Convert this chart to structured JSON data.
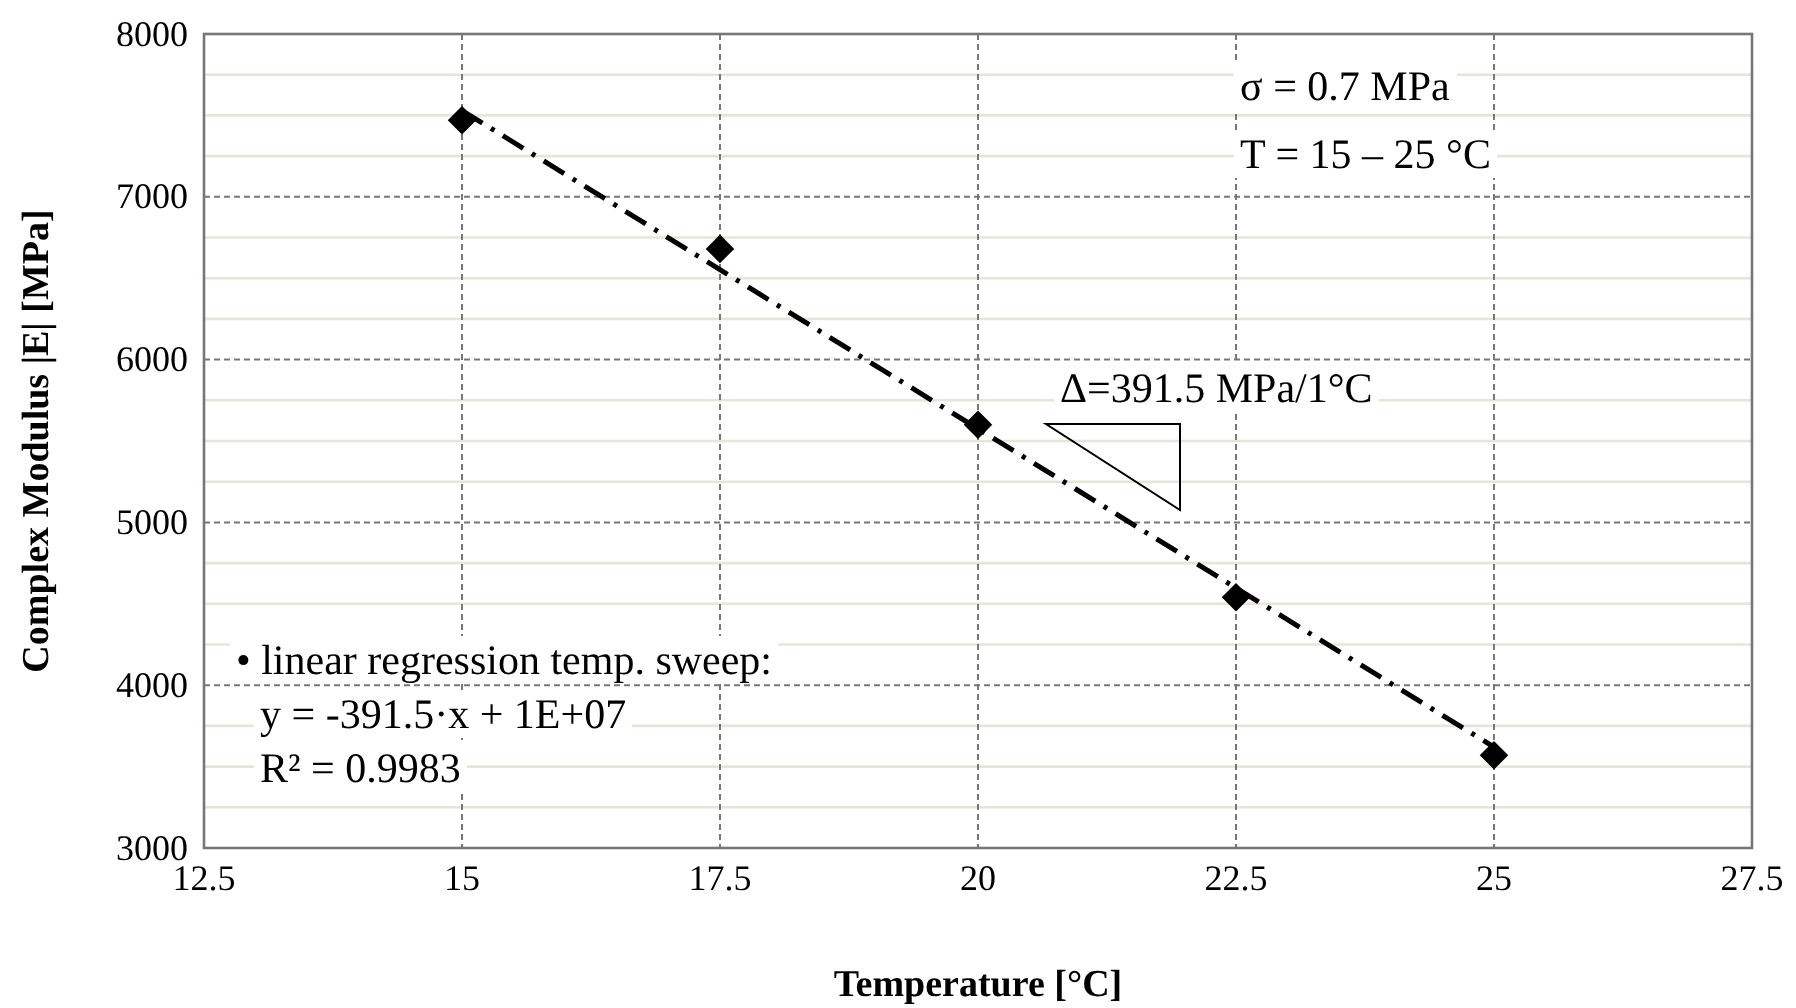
{
  "chart_data": {
    "type": "scatter",
    "xlabel": "Temperature [°C]",
    "ylabel": "Complex Modulus |E| [MPa]",
    "xlim": [
      12.5,
      27.5
    ],
    "xticks": [
      {
        "value": 12.5,
        "label": "12.5"
      },
      15,
      {
        "value": 17.5,
        "label": "17.5"
      },
      20,
      {
        "value": 22.5,
        "label": "22.5"
      },
      25,
      {
        "value": 27.5,
        "label": "27.5"
      }
    ],
    "ylim": [
      3000,
      8000
    ],
    "yticks": [
      3000,
      {
        "value": 3250,
        "label": null
      },
      {
        "value": 3500,
        "label": null
      },
      {
        "value": 3750,
        "label": null
      },
      4000,
      {
        "value": 4250,
        "label": null
      },
      {
        "value": 4500,
        "label": null
      },
      {
        "value": 4750,
        "label": null
      },
      5000,
      {
        "value": 5250,
        "label": null
      },
      {
        "value": 5500,
        "label": null
      },
      {
        "value": 5750,
        "label": null
      },
      6000,
      {
        "value": 6250,
        "label": null
      },
      {
        "value": 6500,
        "label": null
      },
      {
        "value": 6750,
        "label": null
      },
      7000,
      {
        "value": 7250,
        "label": null
      },
      {
        "value": 7500,
        "label": null
      },
      {
        "value": 7750,
        "label": null
      },
      8000
    ],
    "grid": true,
    "series": [
      {
        "type": "line",
        "color": "#000000",
        "x": [
          15,
          25
        ],
        "values": [
          7530,
          3620
        ],
        "line_style": "dashed",
        "marker": "none"
      },
      {
        "color": "#000000",
        "x": [
          15,
          17.5,
          20,
          22.5,
          25
        ],
        "values": [
          7470,
          6680,
          5600,
          4540,
          3570
        ],
        "marker": "diamond"
      }
    ],
    "annotations": [
      "σ = 0.7 MPa",
      "T = 15 – 25 °C",
      "Δ=391.5 MPa/1°C",
      "• linear regression temp. sweep:",
      "y = -391.5·x + 1E+07",
      "R² = 0.9983"
    ]
  }
}
